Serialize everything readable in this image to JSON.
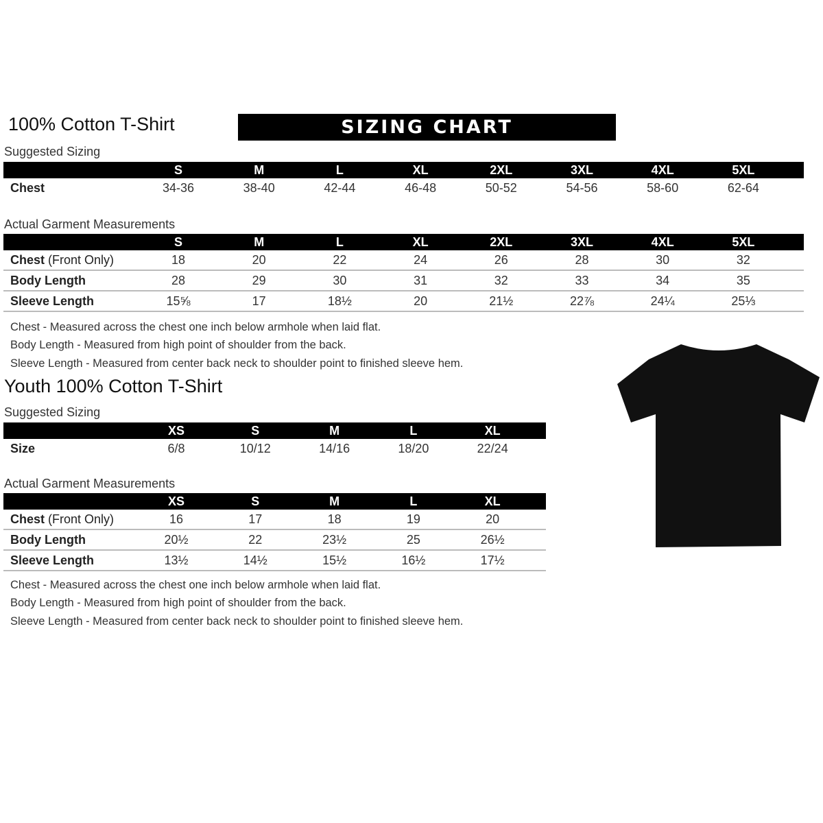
{
  "banner": "SIZING CHART",
  "adult": {
    "title": "100% Cotton T-Shirt",
    "suggested_label": "Suggested Sizing",
    "sizes": [
      "S",
      "M",
      "L",
      "XL",
      "2XL",
      "3XL",
      "4XL",
      "5XL"
    ],
    "suggested_rows": [
      {
        "label": "Chest",
        "suffix": "",
        "values": [
          "34-36",
          "38-40",
          "42-44",
          "46-48",
          "50-52",
          "54-56",
          "58-60",
          "62-64"
        ]
      }
    ],
    "actual_label": "Actual Garment Measurements",
    "actual_rows": [
      {
        "label": "Chest",
        "suffix": " (Front Only)",
        "values": [
          "18",
          "20",
          "22",
          "24",
          "26",
          "28",
          "30",
          "32"
        ]
      },
      {
        "label": "Body Length",
        "suffix": "",
        "values": [
          "28",
          "29",
          "30",
          "31",
          "32",
          "33",
          "34",
          "35"
        ]
      },
      {
        "label": "Sleeve Length",
        "suffix": "",
        "values": [
          "15⅝",
          "17",
          "18½",
          "20",
          "21½",
          "22⅞",
          "24¼",
          "25⅓"
        ]
      }
    ],
    "notes": [
      "Chest - Measured across the chest one inch below armhole when laid flat.",
      "Body Length - Measured from high point of shoulder from the back.",
      "Sleeve Length - Measured from center back neck to shoulder point to finished sleeve hem."
    ]
  },
  "youth": {
    "title": "Youth 100% Cotton T-Shirt",
    "suggested_label": "Suggested Sizing",
    "sizes": [
      "XS",
      "S",
      "M",
      "L",
      "XL"
    ],
    "suggested_rows": [
      {
        "label": "Size",
        "suffix": "",
        "values": [
          "6/8",
          "10/12",
          "14/16",
          "18/20",
          "22/24"
        ]
      }
    ],
    "actual_label": "Actual Garment Measurements",
    "actual_rows": [
      {
        "label": "Chest",
        "suffix": " (Front Only)",
        "values": [
          "16",
          "17",
          "18",
          "19",
          "20"
        ]
      },
      {
        "label": "Body Length",
        "suffix": "",
        "values": [
          "20½",
          "22",
          "23½",
          "25",
          "26½"
        ]
      },
      {
        "label": "Sleeve Length",
        "suffix": "",
        "values": [
          "13½",
          "14½",
          "15½",
          "16½",
          "17½"
        ]
      }
    ],
    "notes": [
      "Chest - Measured across the chest one inch below armhole when laid flat.",
      "Body Length - Measured from high point of shoulder from the back.",
      "Sleeve Length - Measured from center back neck to shoulder point to finished sleeve hem."
    ]
  },
  "shirt_color": "#111111"
}
